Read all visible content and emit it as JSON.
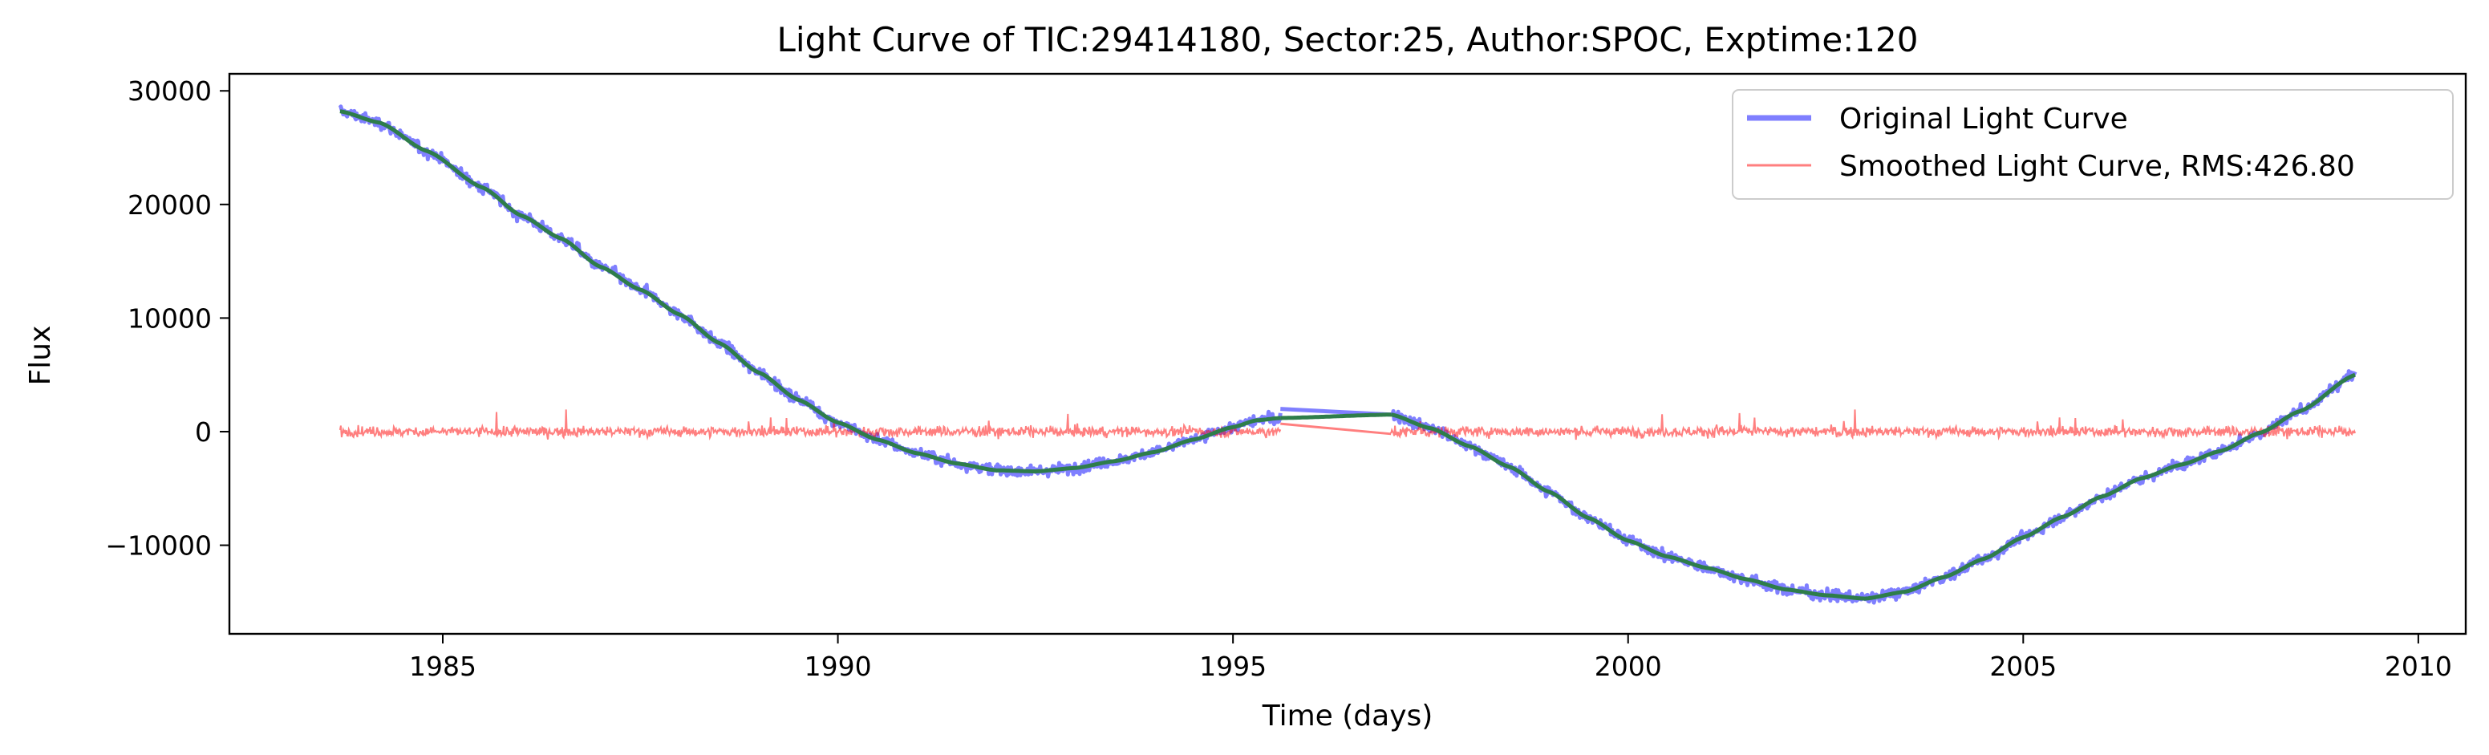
{
  "chart_data": {
    "type": "line",
    "title": "Light Curve of TIC:29414180, Sector:25, Author:SPOC, Exptime:120",
    "xlabel": "Time (days)",
    "ylabel": "Flux",
    "xlim": [
      1982.3,
      2010.6
    ],
    "ylim": [
      -17800,
      31500
    ],
    "xticks": [
      1985,
      1990,
      1995,
      2000,
      2005,
      2010
    ],
    "xtick_labels": [
      "1985",
      "1990",
      "1995",
      "2000",
      "2005",
      "2010"
    ],
    "yticks": [
      -10000,
      0,
      10000,
      20000,
      30000
    ],
    "ytick_labels": [
      "−10000",
      "0",
      "10000",
      "20000",
      "30000"
    ],
    "grid": false,
    "legend_position": "top-right",
    "rms_value": 426.8,
    "series": [
      {
        "name": "Original Light Curve",
        "color": "#0000ff",
        "opacity": 0.5,
        "segments": [
          {
            "x": [
              1983.7,
              1984.2,
              1984.8,
              1985.5,
              1986.0,
              1986.5,
              1987.0,
              1987.5,
              1988.0,
              1988.5,
              1989.0,
              1989.5,
              1990.0,
              1990.5,
              1991.0,
              1991.5,
              1992.0,
              1992.5,
              1993.0,
              1993.5,
              1994.0,
              1994.5,
              1995.0,
              1995.3,
              1995.6
            ],
            "y": [
              28200,
              27200,
              24700,
              21500,
              19000,
              17000,
              14500,
              12500,
              10300,
              7800,
              5200,
              2800,
              800,
              -700,
              -1900,
              -2800,
              -3400,
              -3500,
              -3200,
              -2600,
              -1800,
              -700,
              400,
              1000,
              1200
            ]
          },
          {
            "x": [
              1997.0,
              1997.5,
              1998.0,
              1998.5,
              1999.0,
              1999.5,
              2000.0,
              2000.5,
              2001.0,
              2001.5,
              2002.0,
              2002.5,
              2003.0,
              2003.5,
              2004.0,
              2004.5,
              2005.0,
              2005.5,
              2006.0,
              2006.5,
              2007.0,
              2007.5,
              2008.0,
              2008.5,
              2009.2
            ],
            "y": [
              1500,
              300,
              -1300,
              -3100,
              -5300,
              -7600,
              -9600,
              -11000,
              -12000,
              -13000,
              -13900,
              -14400,
              -14700,
              -14100,
              -12800,
              -11200,
              -9300,
              -7500,
              -5700,
              -4100,
              -2900,
              -1700,
              -100,
              1800,
              5000
            ]
          }
        ],
        "gap_bridge": {
          "x": [
            1995.6,
            1997.0
          ],
          "y": [
            2000,
            1500
          ]
        }
      },
      {
        "name": "Smoothed Light Curve, RMS:426.80",
        "color": "#ff0000",
        "opacity": 0.5,
        "noise_amplitude": 427,
        "segments": [
          {
            "x": [
              1983.7,
              1995.6
            ],
            "y": [
              0,
              0
            ]
          },
          {
            "x": [
              1997.0,
              2009.2
            ],
            "y": [
              0,
              0
            ]
          }
        ],
        "gap_bridge": {
          "x": [
            1995.6,
            1997.0
          ],
          "y": [
            700,
            -200
          ]
        }
      },
      {
        "name": "",
        "color": "#2e7d4a",
        "segments": [
          {
            "x": [
              1983.7,
              1984.2,
              1984.8,
              1985.5,
              1986.0,
              1986.5,
              1987.0,
              1987.5,
              1988.0,
              1988.5,
              1989.0,
              1989.5,
              1990.0,
              1990.5,
              1991.0,
              1991.5,
              1992.0,
              1992.5,
              1993.0,
              1993.5,
              1994.0,
              1994.5,
              1995.0,
              1995.3,
              1995.6
            ],
            "y": [
              28200,
              27200,
              24700,
              21500,
              19000,
              17000,
              14500,
              12500,
              10300,
              7800,
              5200,
              2800,
              800,
              -700,
              -1900,
              -2800,
              -3400,
              -3500,
              -3200,
              -2600,
              -1800,
              -700,
              400,
              1000,
              1200
            ]
          },
          {
            "x": [
              1995.6,
              1997.0
            ],
            "y": [
              1200,
              1500
            ]
          },
          {
            "x": [
              1997.0,
              1997.5,
              1998.0,
              1998.5,
              1999.0,
              1999.5,
              2000.0,
              2000.5,
              2001.0,
              2001.5,
              2002.0,
              2002.5,
              2003.0,
              2003.5,
              2004.0,
              2004.5,
              2005.0,
              2005.5,
              2006.0,
              2006.5,
              2007.0,
              2007.5,
              2008.0,
              2008.5,
              2009.2
            ],
            "y": [
              1500,
              300,
              -1300,
              -3100,
              -5300,
              -7600,
              -9600,
              -11000,
              -12000,
              -13000,
              -13900,
              -14400,
              -14700,
              -14100,
              -12800,
              -11200,
              -9300,
              -7500,
              -5700,
              -4100,
              -2900,
              -1700,
              -100,
              1800,
              5000
            ]
          }
        ]
      }
    ],
    "legend": [
      {
        "label": "Original Light Curve",
        "color": "#0000ff"
      },
      {
        "label": "Smoothed Light Curve, RMS:426.80",
        "color": "#ff0000"
      }
    ]
  }
}
